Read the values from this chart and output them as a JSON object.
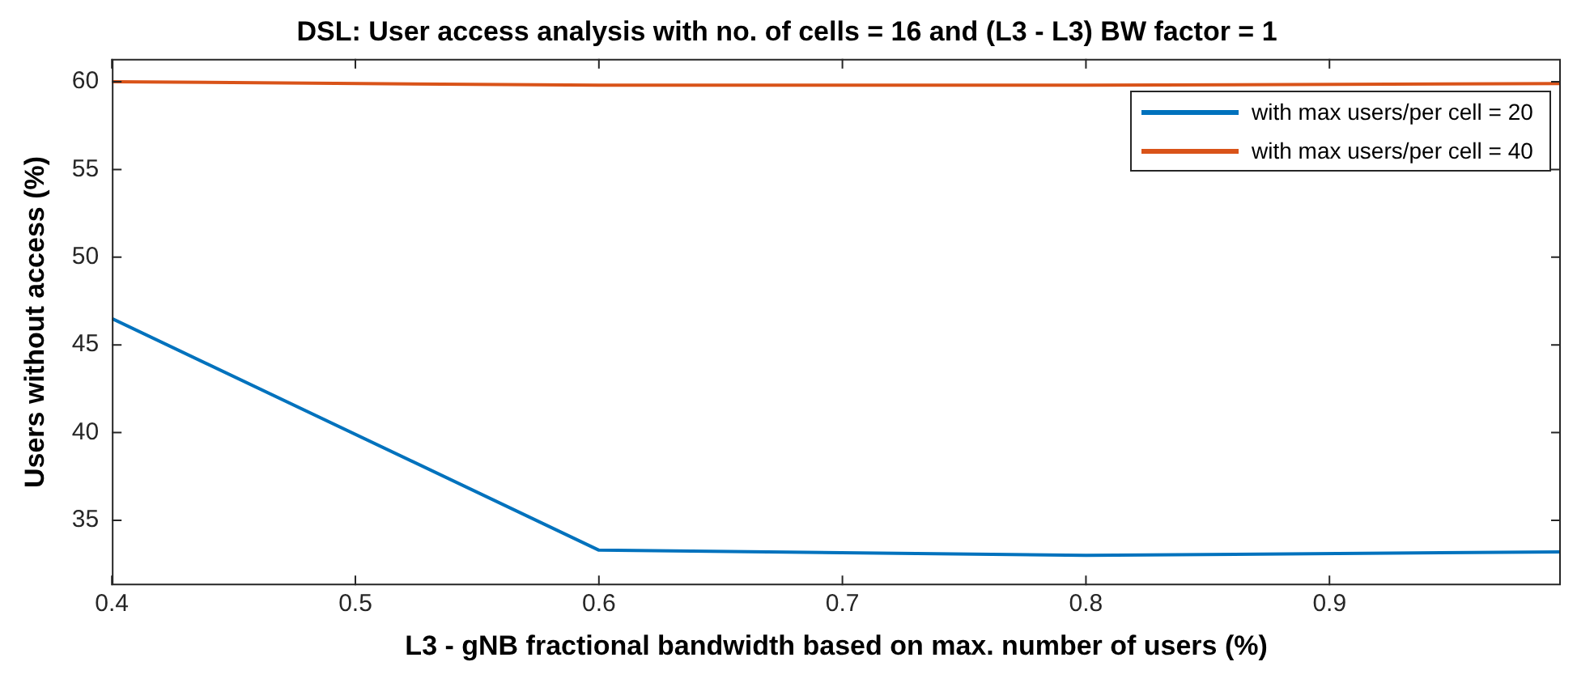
{
  "chart_data": {
    "type": "line",
    "title": "DSL: User access analysis with no. of cells = 16 and (L3 - L3) BW factor = 1",
    "xlabel": "L3 - gNB fractional bandwidth based on max. number of users (%)",
    "ylabel": "Users without access (%)",
    "x": [
      0.4,
      0.6,
      0.8,
      0.995
    ],
    "series": [
      {
        "name": "with max users/per cell = 20",
        "color": "#0072bd",
        "values": [
          46.5,
          33.3,
          33.0,
          33.2
        ]
      },
      {
        "name": "with max users/per cell = 40",
        "color": "#d95319",
        "values": [
          60.0,
          59.8,
          59.8,
          59.9
        ]
      }
    ],
    "xlim": [
      0.4,
      0.995
    ],
    "xticks": [
      0.4,
      0.5,
      0.6,
      0.7,
      0.8,
      0.9
    ],
    "ylim": [
      31.3,
      61.3
    ],
    "yticks": [
      35,
      40,
      45,
      50,
      55,
      60
    ],
    "grid": false,
    "legend": "top right",
    "marker": "none",
    "line_style": "solid"
  }
}
